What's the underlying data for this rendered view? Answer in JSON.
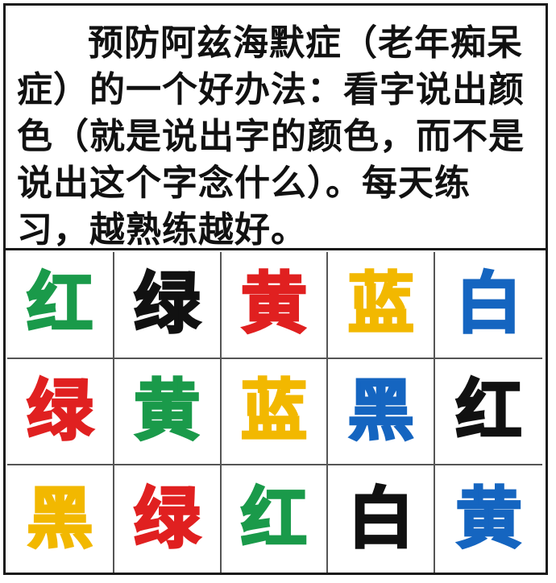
{
  "instructions": {
    "text": "预防阿兹海默症（老年痴呆症）的一个好办法：看字说出颜色（就是说出字的颜色，而不是说出这个字念什么）。每天练习，越熟练越好。"
  },
  "grid": {
    "cells": [
      {
        "word": "红",
        "color": "#1a9a4a"
      },
      {
        "word": "绿",
        "color": "#111111"
      },
      {
        "word": "黄",
        "color": "#e02020"
      },
      {
        "word": "蓝",
        "color": "#f2b800"
      },
      {
        "word": "白",
        "color": "#1565c0"
      },
      {
        "word": "绿",
        "color": "#e02020"
      },
      {
        "word": "黄",
        "color": "#1a9a4a"
      },
      {
        "word": "蓝",
        "color": "#f2b800"
      },
      {
        "word": "黑",
        "color": "#1565c0"
      },
      {
        "word": "红",
        "color": "#111111"
      },
      {
        "word": "黑",
        "color": "#f2b800"
      },
      {
        "word": "绿",
        "color": "#e02020"
      },
      {
        "word": "红",
        "color": "#1a9a4a"
      },
      {
        "word": "白",
        "color": "#111111"
      },
      {
        "word": "黄",
        "color": "#1565c0"
      }
    ]
  }
}
